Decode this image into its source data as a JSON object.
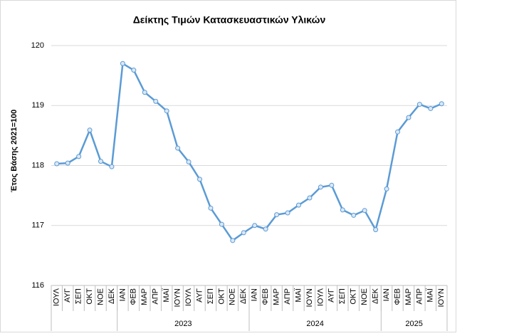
{
  "chart_data": {
    "type": "line",
    "title": "Δείκτης Τιμών Κατασκευαστικών Υλικών",
    "y_label": "Έτος Βάσης 2021=100",
    "categories": [
      "ΙΟΥΛ",
      "ΑΥΓ",
      "ΣΕΠ",
      "ΟΚΤ",
      "ΝΟΕ",
      "ΔΕΚ",
      "ΙΑΝ",
      "ΦΕΒ",
      "ΜΑΡ",
      "ΑΠΡ",
      "ΜΑΪ",
      "ΙΟΥΝ",
      "ΙΟΥΛ",
      "ΑΥΓ",
      "ΣΕΠ",
      "ΟΚΤ",
      "ΝΟΕ",
      "ΔΕΚ",
      "ΙΑΝ",
      "ΦΕΒ",
      "ΜΑΡ",
      "ΑΠΡ",
      "ΜΑΪ",
      "ΙΟΥΝ",
      "ΙΟΥΛ",
      "ΑΥΓ",
      "ΣΕΠ",
      "ΟΚΤ",
      "ΝΟΕ",
      "ΔΕΚ",
      "ΙΑΝ",
      "ΦΕΒ",
      "ΜΑΡ",
      "ΑΠΡ",
      "ΜΑΪ",
      "ΙΟΥΝ"
    ],
    "groups": [
      {
        "label": null,
        "size": 6
      },
      {
        "label": "2023",
        "size": 12
      },
      {
        "label": "2024",
        "size": 12
      },
      {
        "label": "2025",
        "size": 6
      }
    ],
    "series": [
      {
        "name": "Δείκτης",
        "color": "#5b9bd5",
        "values": [
          118.03,
          118.04,
          118.15,
          118.59,
          118.07,
          117.98,
          119.7,
          119.59,
          119.22,
          119.07,
          118.91,
          118.29,
          118.06,
          117.77,
          117.29,
          117.02,
          116.75,
          116.88,
          117.0,
          116.94,
          117.18,
          117.21,
          117.34,
          117.46,
          117.64,
          117.67,
          117.26,
          117.17,
          117.25,
          116.93,
          117.61,
          118.56,
          118.8,
          119.02,
          118.95,
          119.03
        ]
      }
    ],
    "ylim": [
      116,
      120
    ],
    "yticks": [
      116,
      117,
      118,
      119,
      120
    ],
    "grid": true
  }
}
